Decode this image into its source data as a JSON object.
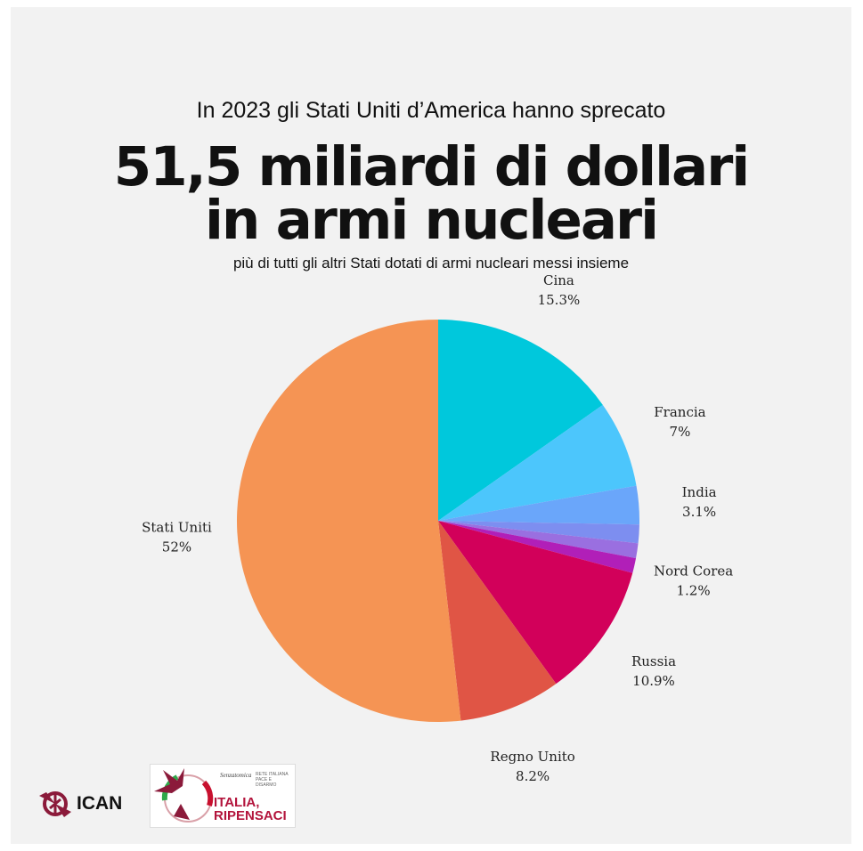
{
  "header": {
    "intro": "In 2023 gli Stati Uniti d’America hanno sprecato",
    "headline_line1": "51,5 miliardi di dollari",
    "headline_line2": "in armi nucleari",
    "subtitle": "più di tutti gli altri Stati dotati di armi nucleari messi insieme"
  },
  "chart_data": {
    "type": "pie",
    "unit": "%",
    "slices": [
      {
        "label": "Cina",
        "value": 15.3,
        "value_label": "15.3%",
        "color": "#00c8dc"
      },
      {
        "label": "Francia",
        "value": 7,
        "value_label": "7%",
        "color": "#4cc6fc"
      },
      {
        "label": "India",
        "value": 3.1,
        "value_label": "3.1%",
        "color": "#6aa6fa"
      },
      {
        "label": "",
        "value": 1.5,
        "value_label": "",
        "color": "#7d8ef0"
      },
      {
        "label": "",
        "value": 1.2,
        "value_label": "",
        "color": "#9a6fe0"
      },
      {
        "label": "Nord Corea",
        "value": 1.2,
        "value_label": "1.2%",
        "color": "#b11fb8"
      },
      {
        "label": "Russia",
        "value": 10.9,
        "value_label": "10.9%",
        "color": "#d2005a"
      },
      {
        "label": "Regno Unito",
        "value": 8.2,
        "value_label": "8.2%",
        "color": "#e05545"
      },
      {
        "label": "Stati Uniti",
        "value": 52,
        "value_label": "52%",
        "color": "#f59454"
      }
    ]
  },
  "logos": {
    "ican": "ICAN",
    "italia_line1": "ITALIA,",
    "italia_line2": "RIPENSACI",
    "italia_tag1": "Senzatomica",
    "italia_tag2": "RETE ITALIANA PACE E DISARMO"
  }
}
